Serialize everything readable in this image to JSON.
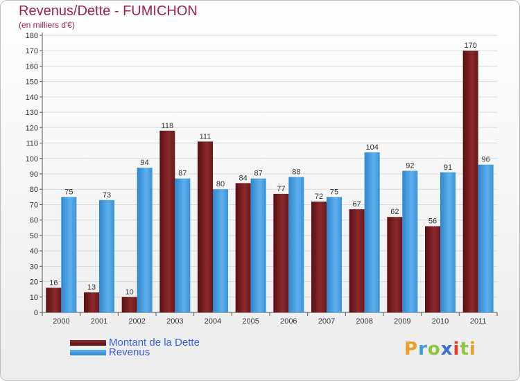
{
  "title": "Revenus/Dette - FUMICHON",
  "subtitle": "(en milliers d'€)",
  "logo": {
    "letters": [
      "P",
      "r",
      "o",
      "x",
      "i",
      "t",
      "i"
    ],
    "colors": [
      "#e8a02b",
      "#3aa0d8",
      "#8cc63f",
      "#3a6ed8",
      "#e0402a",
      "#8cc63f",
      "#e8a02b"
    ]
  },
  "colors": {
    "dette": "#6e1a1a",
    "revenus": "#3f9be0",
    "text": "#333333"
  },
  "chart_data": {
    "type": "bar",
    "title": "Revenus/Dette - FUMICHON",
    "ylabel": "(en milliers d'€)",
    "ylim": [
      0,
      180
    ],
    "yticks": [
      0,
      10,
      20,
      30,
      40,
      50,
      60,
      70,
      80,
      90,
      100,
      110,
      120,
      130,
      140,
      150,
      160,
      170,
      180
    ],
    "grid": true,
    "legend_position": "bottom-left",
    "categories": [
      "2000",
      "2001",
      "2002",
      "2003",
      "2004",
      "2005",
      "2006",
      "2007",
      "2008",
      "2009",
      "2010",
      "2011"
    ],
    "series": [
      {
        "name": "Montant de la Dette",
        "values": [
          16,
          13,
          10,
          118,
          111,
          84,
          77,
          72,
          67,
          62,
          56,
          170
        ]
      },
      {
        "name": "Revenus",
        "values": [
          75,
          73,
          94,
          87,
          80,
          87,
          88,
          75,
          104,
          92,
          91,
          96
        ]
      }
    ]
  }
}
